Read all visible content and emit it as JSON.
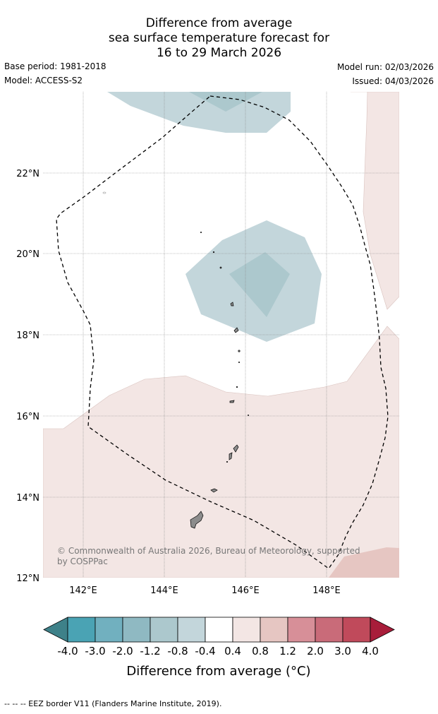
{
  "title": {
    "line1": "Difference from average",
    "line2": "sea surface temperature forecast for",
    "line3": "16 to 29 March 2026"
  },
  "meta": {
    "base_period": "Base period: 1981-2018",
    "model": "Model: ACCESS-S2",
    "model_run": "Model run: 02/03/2026",
    "issued": "Issued: 04/03/2026"
  },
  "map": {
    "lat_labels": [
      "22°N",
      "20°N",
      "18°N",
      "16°N",
      "14°N",
      "12°N"
    ],
    "lon_labels": [
      "142°E",
      "144°E",
      "146°E",
      "148°E"
    ],
    "copyright": "© Commonwealth of Australia 2026, Bureau of Meteorology, supported by COSPPac",
    "colors": {
      "anom_neg_0_4_0_8": "#c3d6db",
      "anom_neg_0_8_1_2": "#acc8cd",
      "anom_pos_0_4_0_8": "#f3e6e4",
      "anom_pos_0_8_1_2": "#e6c6c2",
      "land": "#8c8c8c",
      "grid": "#888888"
    }
  },
  "colorbar": {
    "ticks": [
      "-4.0",
      "-3.0",
      "-2.0",
      "-1.2",
      "-0.8",
      "-0.4",
      "0.4",
      "0.8",
      "1.2",
      "2.0",
      "3.0",
      "4.0"
    ],
    "colors": [
      "#3e8189",
      "#4aa3b4",
      "#71b0bf",
      "#8fb9c2",
      "#acc8cd",
      "#c3d6db",
      "#ffffff",
      "#f3e6e4",
      "#e6c6c2",
      "#d78f98",
      "#c96b79",
      "#c04a5b",
      "#a81d3a"
    ],
    "label": "Difference from average (°C)"
  },
  "footer": "--  --  -- EEZ border V11 (Flanders Marine Institute, 2019)."
}
